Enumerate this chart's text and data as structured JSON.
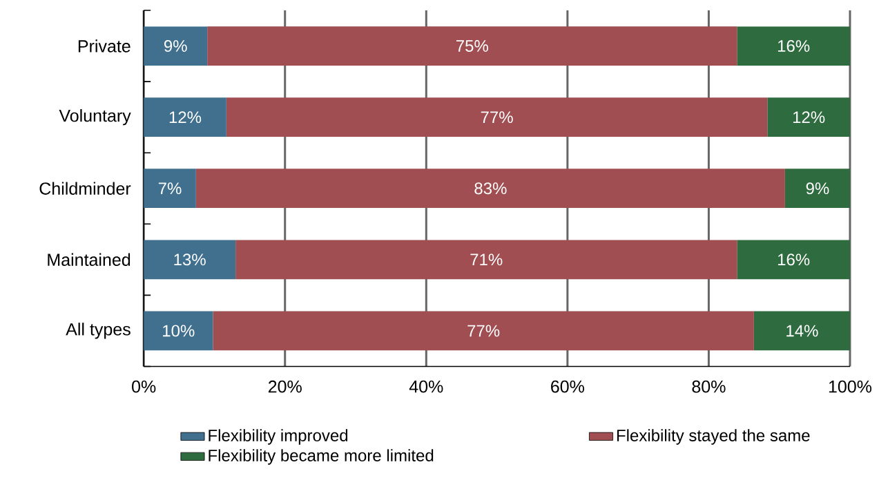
{
  "chart_data": {
    "type": "bar",
    "orientation": "horizontal",
    "stacked": true,
    "categories": [
      "Private",
      "Voluntary",
      "Childminder",
      "Maintained",
      "All types"
    ],
    "series": [
      {
        "name": "Flexibility improved",
        "color": "#41708f",
        "values": [
          9,
          11.7,
          7.4,
          13,
          9.8
        ],
        "value_labels": [
          "9%",
          "12%",
          "7%",
          "13%",
          "10%"
        ]
      },
      {
        "name": "Flexibility stayed the same",
        "color": "#a04e52",
        "values": [
          75,
          76.6,
          83.4,
          71,
          76.6
        ],
        "value_labels": [
          "75%",
          "77%",
          "83%",
          "71%",
          "77%"
        ]
      },
      {
        "name": "Flexibility became more limited",
        "color": "#2e6b3f",
        "values": [
          16,
          11.7,
          9.2,
          16,
          13.6
        ],
        "value_labels": [
          "16%",
          "12%",
          "9%",
          "16%",
          "14%"
        ]
      }
    ],
    "xlim": [
      0,
      100
    ],
    "xticks": [
      {
        "value": 0,
        "label": "0%"
      },
      {
        "value": 20,
        "label": "20%"
      },
      {
        "value": 40,
        "label": "40%"
      },
      {
        "value": 60,
        "label": "60%"
      },
      {
        "value": 80,
        "label": "80%"
      },
      {
        "value": 100,
        "label": "100%"
      }
    ],
    "grid": "x",
    "legend": "bottom"
  }
}
